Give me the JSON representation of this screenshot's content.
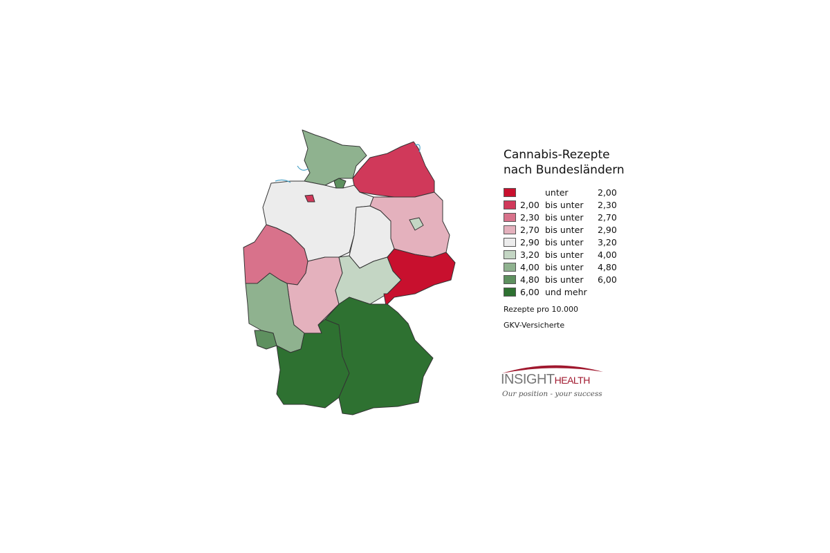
{
  "legend": {
    "title_line1": "Cannabis-Rezepte",
    "title_line2": "nach Bundesländern",
    "classes": [
      {
        "from": "",
        "op": "unter",
        "to": "2,00",
        "color": "#c8102e"
      },
      {
        "from": "2,00",
        "op": "bis unter",
        "to": "2,30",
        "color": "#d0395a"
      },
      {
        "from": "2,30",
        "op": "bis unter",
        "to": "2,70",
        "color": "#d8728b"
      },
      {
        "from": "2,70",
        "op": "bis unter",
        "to": "2,90",
        "color": "#e4b1bd"
      },
      {
        "from": "2,90",
        "op": "bis unter",
        "to": "3,20",
        "color": "#ececec"
      },
      {
        "from": "3,20",
        "op": "bis unter",
        "to": "4,00",
        "color": "#c4d6c4"
      },
      {
        "from": "4,00",
        "op": "bis unter",
        "to": "4,80",
        "color": "#8fb28f"
      },
      {
        "from": "4,80",
        "op": "bis unter",
        "to": "6,00",
        "color": "#5e905f"
      },
      {
        "from": "6,00",
        "op": "und mehr",
        "to": "",
        "color": "#2e7131"
      }
    ],
    "note_line1": "Rezepte pro 10.000",
    "note_line2": "GKV-Versicherte"
  },
  "map": {
    "regions": [
      {
        "id": "schleswig-holstein",
        "class": 6
      },
      {
        "id": "hamburg",
        "class": 7
      },
      {
        "id": "mecklenburg-vorpommern",
        "class": 1
      },
      {
        "id": "niedersachsen",
        "class": 4
      },
      {
        "id": "bremen",
        "class": 1
      },
      {
        "id": "brandenburg",
        "class": 3
      },
      {
        "id": "berlin",
        "class": 5
      },
      {
        "id": "sachsen-anhalt",
        "class": 4
      },
      {
        "id": "nordrhein-westfalen",
        "class": 2
      },
      {
        "id": "hessen",
        "class": 3
      },
      {
        "id": "thueringen",
        "class": 5
      },
      {
        "id": "sachsen",
        "class": 0
      },
      {
        "id": "rheinland-pfalz",
        "class": 6
      },
      {
        "id": "saarland",
        "class": 7
      },
      {
        "id": "baden-wuerttemberg",
        "class": 8
      },
      {
        "id": "bayern",
        "class": 8
      }
    ]
  },
  "logo": {
    "brand_a": "INSIGHT",
    "brand_b": "HEALTH",
    "tagline": "Our position - your success",
    "accent": "#a0182e"
  }
}
